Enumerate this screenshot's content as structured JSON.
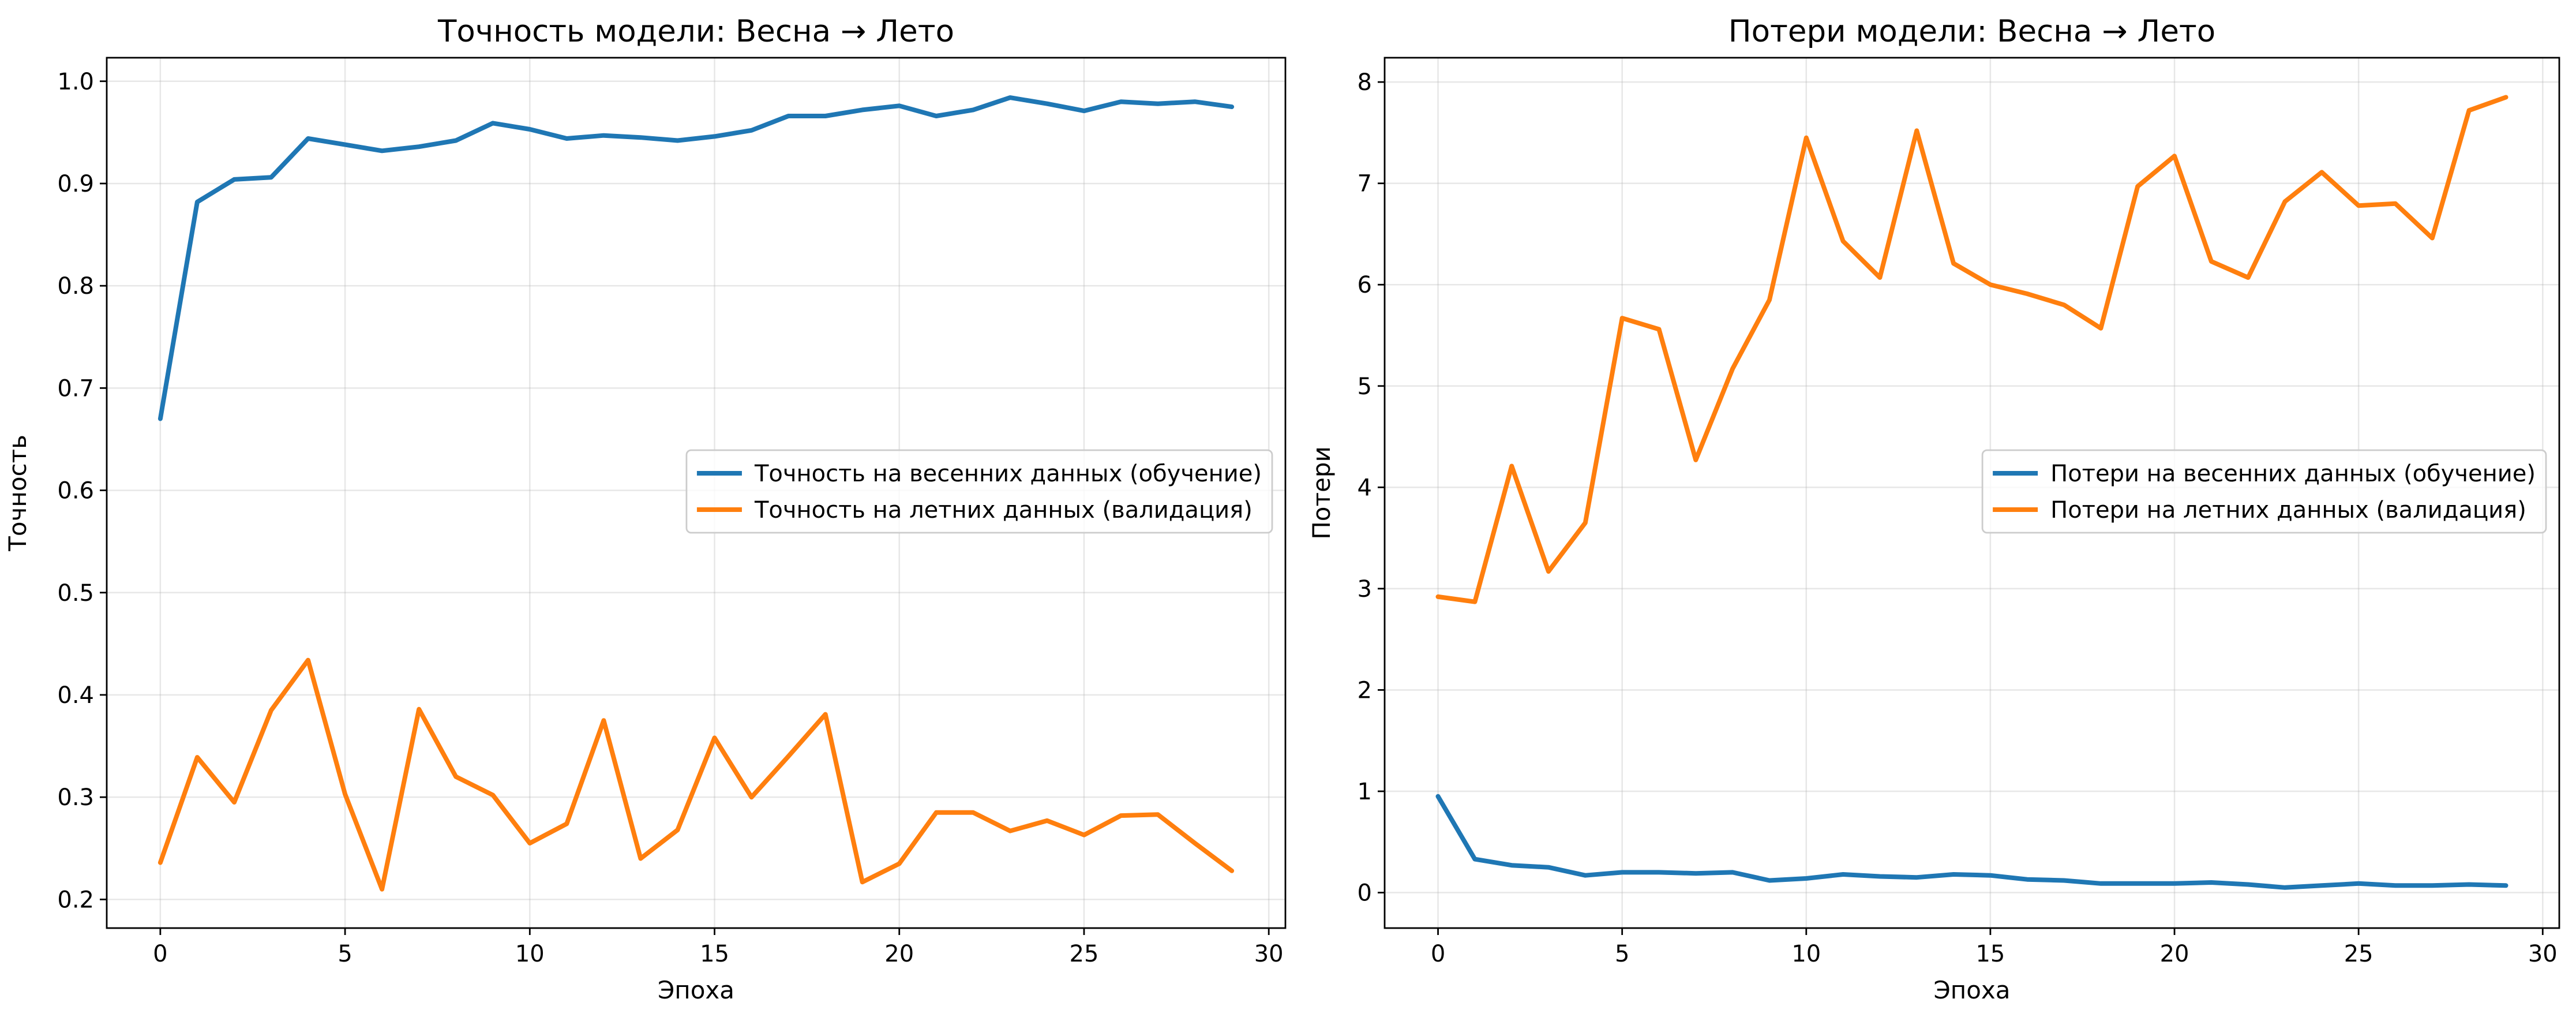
{
  "chart_data": [
    {
      "type": "line",
      "title": "Точность модели: Весна → Лето",
      "xlabel": "Эпоха",
      "ylabel": "Точность",
      "xlim": [
        -1.45,
        30.45
      ],
      "ylim": [
        0.172,
        1.023
      ],
      "xticks": [
        0,
        5,
        10,
        15,
        20,
        25,
        30
      ],
      "yticks": [
        0.2,
        0.3,
        0.4,
        0.5,
        0.6,
        0.7,
        0.8,
        0.9,
        1.0
      ],
      "ytick_labels": [
        "0.2",
        "0.3",
        "0.4",
        "0.5",
        "0.6",
        "0.7",
        "0.8",
        "0.9",
        "1.0"
      ],
      "grid": true,
      "legend_position": "center-right",
      "x": [
        0,
        1,
        2,
        3,
        4,
        5,
        6,
        7,
        8,
        9,
        10,
        11,
        12,
        13,
        14,
        15,
        16,
        17,
        18,
        19,
        20,
        21,
        22,
        23,
        24,
        25,
        26,
        27,
        28,
        29
      ],
      "series": [
        {
          "name": "Точность на весенних данных (обучение)",
          "color": "#1f77b4",
          "values": [
            0.67,
            0.882,
            0.904,
            0.906,
            0.944,
            0.938,
            0.932,
            0.936,
            0.942,
            0.959,
            0.953,
            0.944,
            0.947,
            0.945,
            0.942,
            0.946,
            0.952,
            0.966,
            0.966,
            0.972,
            0.976,
            0.966,
            0.972,
            0.984,
            0.978,
            0.971,
            0.98,
            0.978,
            0.98,
            0.975
          ]
        },
        {
          "name": "Точность на летних данных (валидация)",
          "color": "#ff7f0e",
          "values": [
            0.236,
            0.339,
            0.295,
            0.385,
            0.434,
            0.303,
            0.21,
            0.386,
            0.32,
            0.302,
            0.255,
            0.274,
            0.375,
            0.24,
            0.268,
            0.358,
            0.3,
            0.34,
            0.381,
            0.217,
            0.235,
            0.285,
            0.285,
            0.267,
            0.277,
            0.263,
            0.282,
            0.283,
            0.255,
            0.228
          ]
        }
      ]
    },
    {
      "type": "line",
      "title": "Потери модели: Весна → Лето",
      "xlabel": "Эпоха",
      "ylabel": "Потери",
      "xlim": [
        -1.45,
        30.45
      ],
      "ylim": [
        -0.35,
        8.24
      ],
      "xticks": [
        0,
        5,
        10,
        15,
        20,
        25,
        30
      ],
      "yticks": [
        0,
        1,
        2,
        3,
        4,
        5,
        6,
        7,
        8
      ],
      "ytick_labels": [
        "0",
        "1",
        "2",
        "3",
        "4",
        "5",
        "6",
        "7",
        "8"
      ],
      "grid": true,
      "legend_position": "center-right",
      "x": [
        0,
        1,
        2,
        3,
        4,
        5,
        6,
        7,
        8,
        9,
        10,
        11,
        12,
        13,
        14,
        15,
        16,
        17,
        18,
        19,
        20,
        21,
        22,
        23,
        24,
        25,
        26,
        27,
        28,
        29
      ],
      "series": [
        {
          "name": "Потери на весенних данных (обучение)",
          "color": "#1f77b4",
          "values": [
            0.95,
            0.33,
            0.27,
            0.25,
            0.17,
            0.2,
            0.2,
            0.19,
            0.2,
            0.12,
            0.14,
            0.18,
            0.16,
            0.15,
            0.18,
            0.17,
            0.13,
            0.12,
            0.09,
            0.09,
            0.09,
            0.1,
            0.08,
            0.05,
            0.07,
            0.09,
            0.07,
            0.07,
            0.08,
            0.07
          ]
        },
        {
          "name": "Потери на летних данных (валидация)",
          "color": "#ff7f0e",
          "values": [
            2.92,
            2.87,
            4.21,
            3.17,
            3.65,
            5.67,
            5.56,
            4.27,
            5.17,
            5.85,
            7.45,
            6.43,
            6.07,
            7.52,
            6.21,
            6.0,
            5.91,
            5.8,
            5.57,
            6.97,
            7.27,
            6.23,
            6.07,
            6.82,
            7.11,
            6.78,
            6.8,
            6.46,
            7.72,
            7.85
          ]
        }
      ]
    }
  ]
}
